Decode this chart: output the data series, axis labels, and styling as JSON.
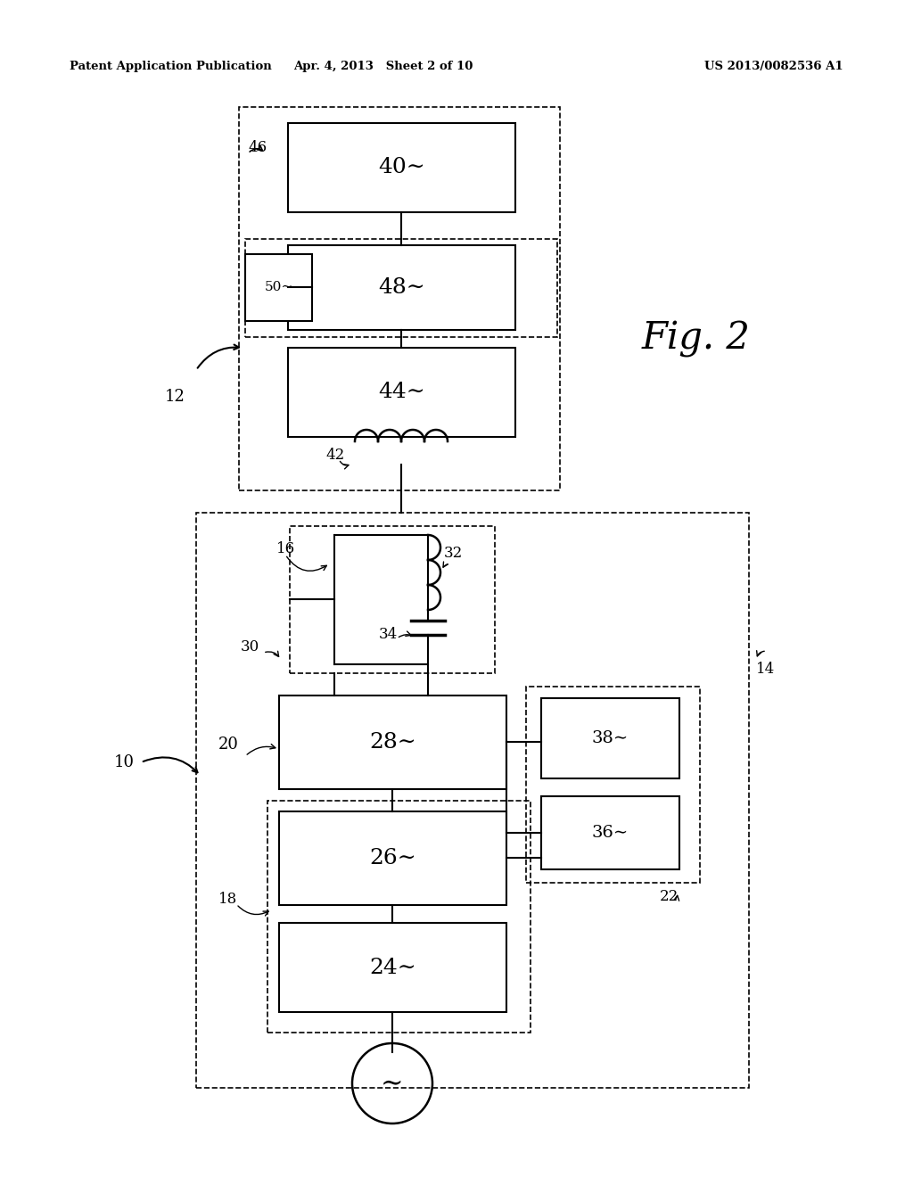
{
  "bg_color": "#ffffff",
  "header_left": "Patent Application Publication",
  "header_center": "Apr. 4, 2013   Sheet 2 of 10",
  "header_right": "US 2013/0082536 A1",
  "fig_label": "Fig. 2"
}
